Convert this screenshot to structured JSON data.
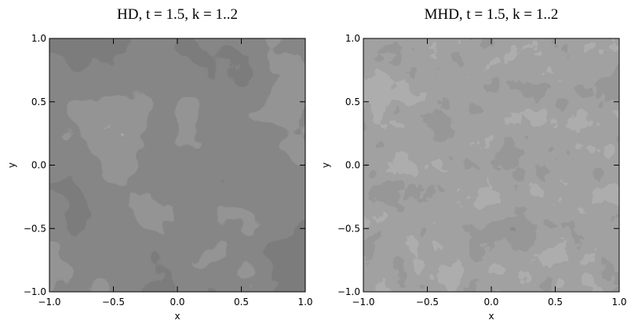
{
  "chart_data": [
    {
      "type": "image",
      "title": "HD, t = 1.5, k = 1..2",
      "xlabel": "x",
      "ylabel": "y",
      "xlim": [
        -1,
        1
      ],
      "ylim": [
        -1,
        1
      ],
      "xticks": [
        {
          "value": -1,
          "label": "−1.0"
        },
        {
          "value": -0.5,
          "label": "−0.5"
        },
        {
          "value": 0,
          "label": "0.0"
        },
        {
          "value": 0.5,
          "label": "0.5"
        },
        {
          "value": 1,
          "label": "1.0"
        }
      ],
      "yticks": [
        {
          "value": -1,
          "label": "−1.0"
        },
        {
          "value": -0.5,
          "label": "−0.5"
        },
        {
          "value": 0,
          "label": "0.0"
        },
        {
          "value": 0.5,
          "label": "0.5"
        },
        {
          "value": 1,
          "label": "1.0"
        }
      ]
    },
    {
      "type": "image",
      "title": "MHD, t = 1.5, k = 1..2",
      "xlabel": "x",
      "ylabel": "y",
      "xlim": [
        -1,
        1
      ],
      "ylim": [
        -1,
        1
      ],
      "xticks": [
        {
          "value": -1,
          "label": "−1.0"
        },
        {
          "value": -0.5,
          "label": "−0.5"
        },
        {
          "value": 0,
          "label": "0.0"
        },
        {
          "value": 0.5,
          "label": "0.5"
        },
        {
          "value": 1,
          "label": "1.0"
        }
      ],
      "yticks": [
        {
          "value": -1,
          "label": "−1.0"
        },
        {
          "value": -0.5,
          "label": "−0.5"
        },
        {
          "value": 0,
          "label": "0.0"
        },
        {
          "value": 0.5,
          "label": "0.5"
        },
        {
          "value": 1,
          "label": "1.0"
        }
      ]
    }
  ]
}
